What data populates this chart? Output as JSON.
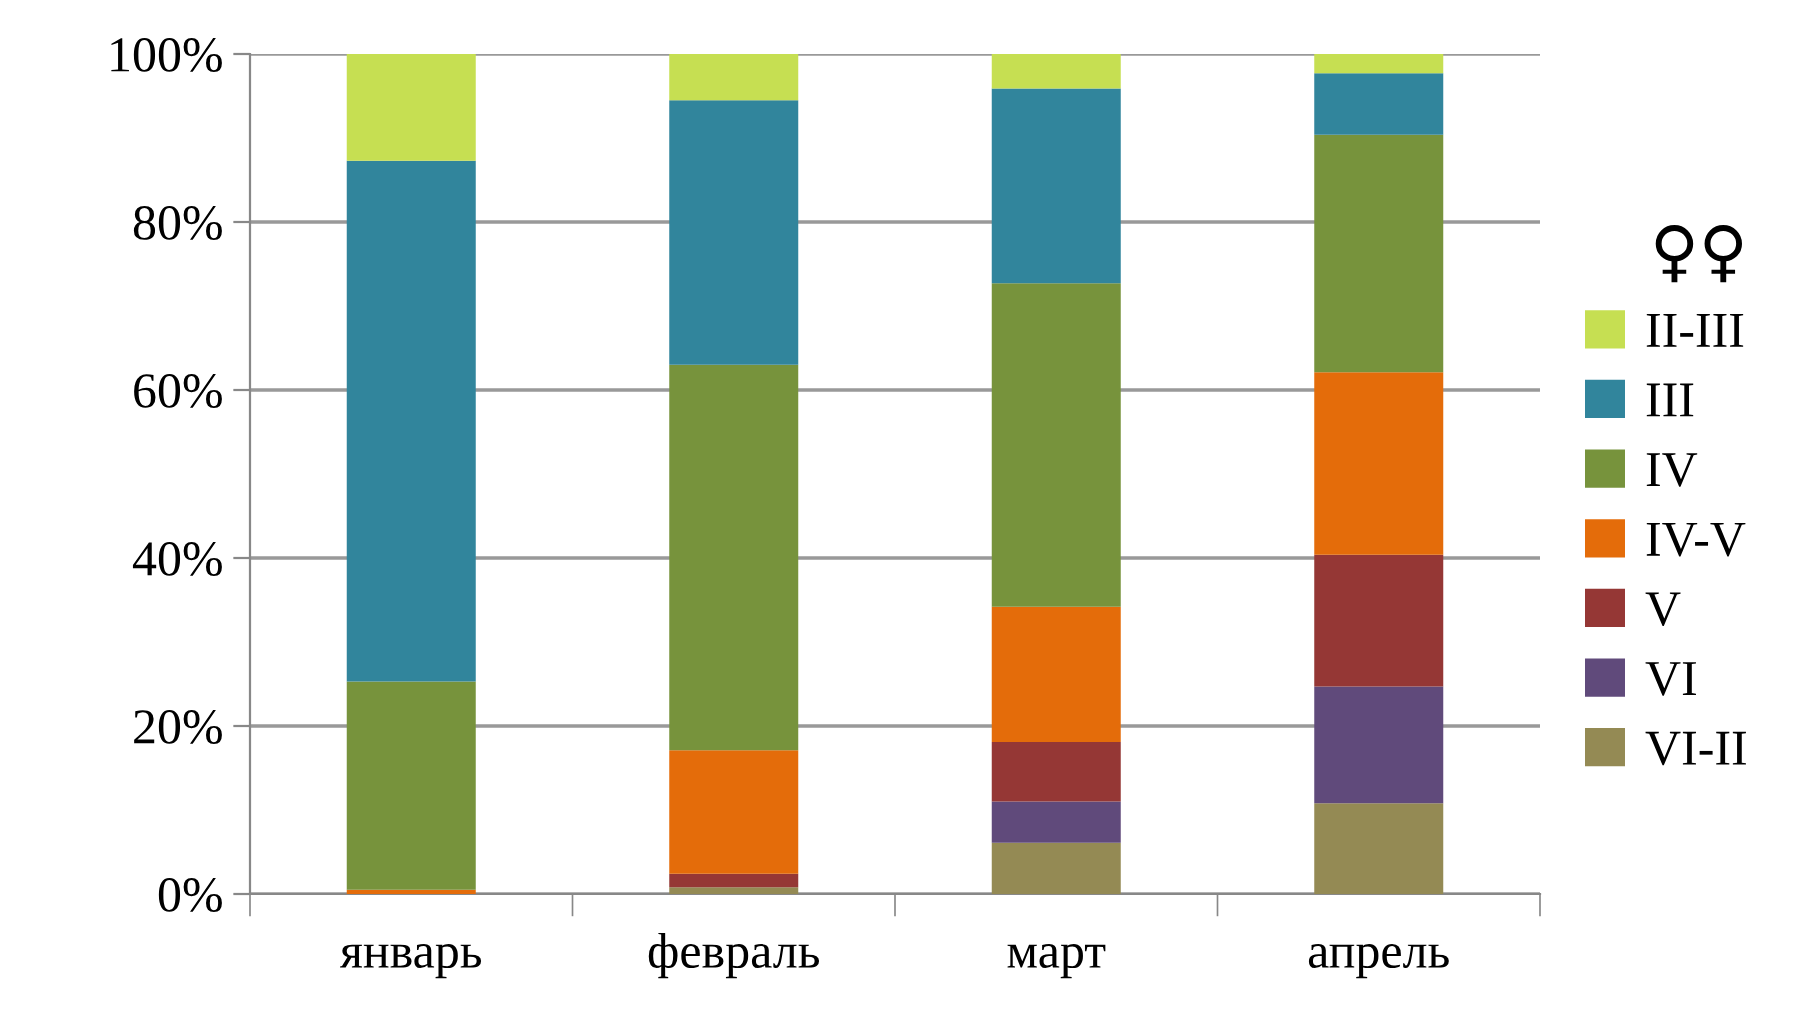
{
  "chart_data": {
    "type": "bar",
    "stacked": true,
    "legend_title": "♀♀",
    "legend": "right",
    "grid": "y",
    "categories": [
      "январь",
      "февраль",
      "март",
      "апрель"
    ],
    "ylim": [
      0,
      100
    ],
    "yticks": [
      {
        "value": 0,
        "label": "0%"
      },
      {
        "value": 20,
        "label": "20%"
      },
      {
        "value": 40,
        "label": "40%"
      },
      {
        "value": 60,
        "label": "60%"
      },
      {
        "value": 80,
        "label": "80%"
      },
      {
        "value": 100,
        "label": "100%"
      }
    ],
    "series": [
      {
        "name": "VI-II",
        "color": "#948a54",
        "values": [
          0,
          0.8,
          6.1,
          10.8
        ]
      },
      {
        "name": "VI",
        "color": "#604a7b",
        "values": [
          0,
          0,
          4.9,
          13.9
        ]
      },
      {
        "name": "V",
        "color": "#953735",
        "values": [
          0,
          1.6,
          7.1,
          15.7
        ]
      },
      {
        "name": "IV-V",
        "color": "#e46c0a",
        "values": [
          0.5,
          14.7,
          16.1,
          21.7
        ]
      },
      {
        "name": "IV",
        "color": "#77933c",
        "values": [
          24.8,
          45.9,
          38.5,
          28.3
        ]
      },
      {
        "name": "III",
        "color": "#31859c",
        "values": [
          62.0,
          31.5,
          23.2,
          7.3
        ]
      },
      {
        "name": "II-III",
        "color": "#c6df52",
        "values": [
          12.7,
          5.5,
          4.1,
          2.3
        ]
      }
    ]
  }
}
